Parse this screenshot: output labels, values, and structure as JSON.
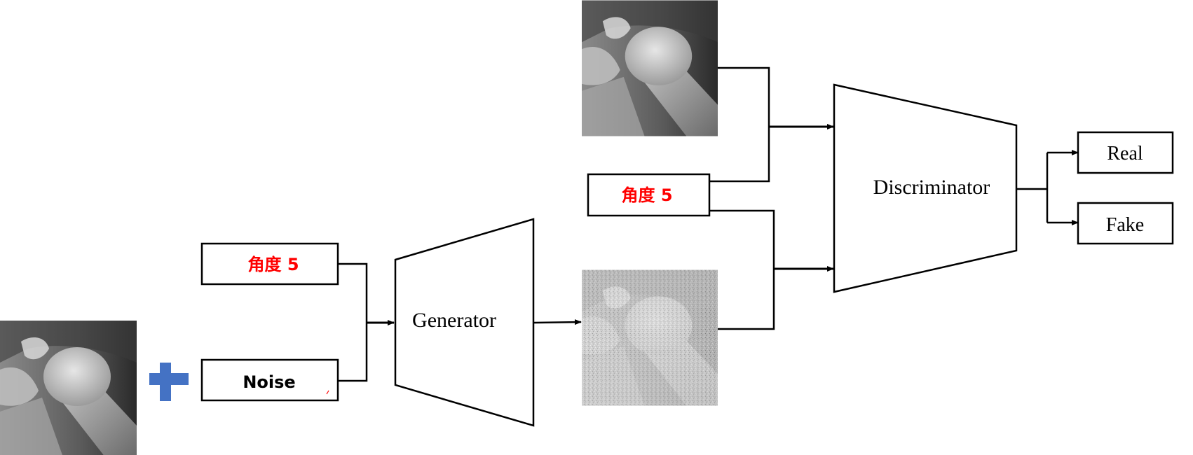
{
  "colors": {
    "line": "#000000",
    "angle_text": "#ff0000",
    "plus": "#4472c4",
    "background": "#ffffff"
  },
  "generator": {
    "angle_label": "角度 5",
    "noise_label": "Noise",
    "block_label": "Generator"
  },
  "discriminator": {
    "angle_label": "角度 5",
    "block_label": "Discriminator",
    "outputs": [
      "Real",
      "Fake"
    ]
  },
  "icons": {
    "plus": "plus-icon",
    "input_xray": "shoulder-xray-input",
    "real_xray": "shoulder-xray-real",
    "generated_xray": "shoulder-xray-generated-noisy"
  }
}
